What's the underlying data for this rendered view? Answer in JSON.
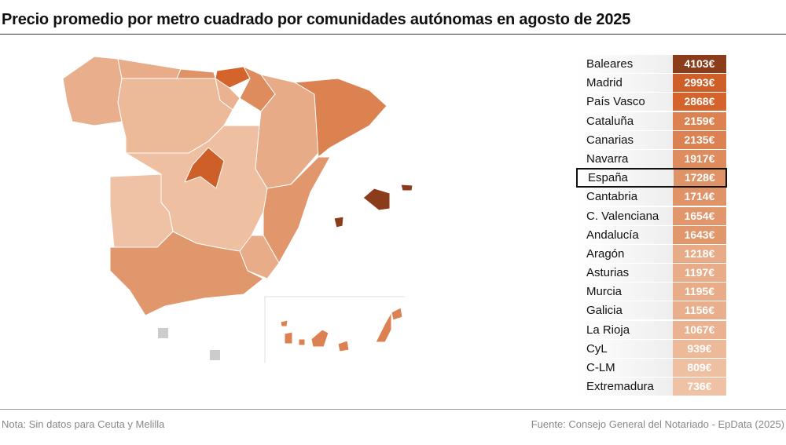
{
  "title": "Precio promedio por metro cuadrado por comunidades autónomas en agosto de 2025",
  "note": "Nota: Sin datos para Ceuta y Melilla",
  "source": "Fuente: Consejo General del Notariado - EpData (2025)",
  "colors": {
    "low": "#f0c4a8",
    "mid": "#e09468",
    "high": "#d5622a",
    "max": "#8b3d1b",
    "nodata": "#cccccc"
  },
  "chart_data": {
    "type": "choropleth",
    "unit": "€",
    "rows": [
      {
        "name": "Baleares",
        "value": 4103,
        "label": "4103€"
      },
      {
        "name": "Madrid",
        "value": 2993,
        "label": "2993€"
      },
      {
        "name": "País Vasco",
        "value": 2868,
        "label": "2868€"
      },
      {
        "name": "Cataluña",
        "value": 2159,
        "label": "2159€"
      },
      {
        "name": "Canarias",
        "value": 2135,
        "label": "2135€"
      },
      {
        "name": "Navarra",
        "value": 1917,
        "label": "1917€"
      },
      {
        "name": "España",
        "value": 1728,
        "label": "1728€",
        "highlight": true
      },
      {
        "name": "Cantabria",
        "value": 1714,
        "label": "1714€"
      },
      {
        "name": "C. Valenciana",
        "value": 1654,
        "label": "1654€"
      },
      {
        "name": "Andalucía",
        "value": 1643,
        "label": "1643€"
      },
      {
        "name": "Aragón",
        "value": 1218,
        "label": "1218€"
      },
      {
        "name": "Asturias",
        "value": 1197,
        "label": "1197€"
      },
      {
        "name": "Murcia",
        "value": 1195,
        "label": "1195€"
      },
      {
        "name": "Galicia",
        "value": 1156,
        "label": "1156€"
      },
      {
        "name": "La Rioja",
        "value": 1067,
        "label": "1067€"
      },
      {
        "name": "CyL",
        "value": 939,
        "label": "939€"
      },
      {
        "name": "C-LM",
        "value": 809,
        "label": "809€"
      },
      {
        "name": "Extremadura",
        "value": 736,
        "label": "736€"
      }
    ],
    "no_data": [
      "Ceuta",
      "Melilla"
    ]
  }
}
